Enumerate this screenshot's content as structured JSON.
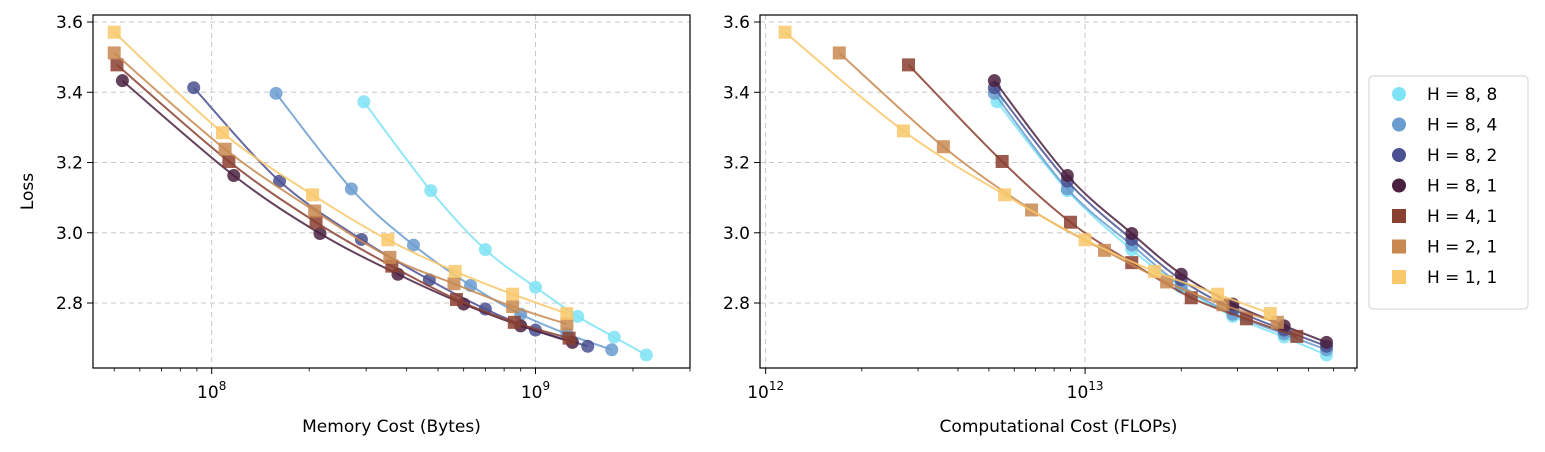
{
  "chart_data": [
    {
      "type": "scatter",
      "xscale": "log",
      "xlabel": "Memory Cost (Bytes)",
      "ylabel": "Loss",
      "xlim": [
        43000000,
        3000000000
      ],
      "ylim": [
        2.615,
        3.62
      ],
      "grid": true,
      "xticks": [
        {
          "value": 100000000,
          "base": "10",
          "exp": "8"
        },
        {
          "value": 1000000000,
          "base": "10",
          "exp": "9"
        }
      ],
      "yticks": [
        {
          "value": 2.8,
          "label": "2.8"
        },
        {
          "value": 3.0,
          "label": "3.0"
        },
        {
          "value": 3.2,
          "label": "3.2"
        },
        {
          "value": 3.4,
          "label": "3.4"
        },
        {
          "value": 3.6,
          "label": "3.6"
        }
      ],
      "series": [
        {
          "name": "H=8,8",
          "marker": "circle",
          "color": "#7ee3f5",
          "x": [
            295000000,
            475000000,
            700000000,
            1000000000,
            1350000000,
            1750000000,
            2200000000
          ],
          "y": [
            3.373,
            3.12,
            2.952,
            2.845,
            2.762,
            2.703,
            2.652
          ]
        },
        {
          "name": "H=8,4",
          "marker": "circle",
          "color": "#6a9ccf",
          "x": [
            158000000,
            270000000,
            420000000,
            630000000,
            900000000,
            1250000000,
            1720000000
          ],
          "y": [
            3.397,
            3.125,
            2.965,
            2.85,
            2.768,
            2.712,
            2.667
          ]
        },
        {
          "name": "H=8,2",
          "marker": "circle",
          "color": "#4a5090",
          "x": [
            88000000,
            162000000,
            290000000,
            470000000,
            700000000,
            1000000000,
            1450000000
          ],
          "y": [
            3.413,
            3.147,
            2.981,
            2.866,
            2.783,
            2.723,
            2.677
          ]
        },
        {
          "name": "H=8,1",
          "marker": "circle",
          "color": "#4a2040",
          "x": [
            53000000,
            117000000,
            216000000,
            376000000,
            600000000,
            900000000,
            1300000000
          ],
          "y": [
            3.433,
            3.163,
            2.998,
            2.882,
            2.797,
            2.735,
            2.688
          ]
        },
        {
          "name": "H=4,1",
          "marker": "square",
          "color": "#8a4030",
          "x": [
            51000000,
            113000000,
            210000000,
            360000000,
            570000000,
            860000000,
            1270000000
          ],
          "y": [
            3.478,
            3.203,
            3.03,
            2.905,
            2.81,
            2.745,
            2.7
          ]
        },
        {
          "name": "H=2,1",
          "marker": "square",
          "color": "#c88850",
          "x": [
            50000000,
            110000000,
            208000000,
            355000000,
            560000000,
            850000000,
            1250000000
          ],
          "y": [
            3.512,
            3.238,
            3.062,
            2.93,
            2.855,
            2.79,
            2.74
          ]
        },
        {
          "name": "H=1,1",
          "marker": "square",
          "color": "#f8c86a",
          "x": [
            50000000,
            108000000,
            205000000,
            350000000,
            565000000,
            850000000,
            1250000000
          ],
          "y": [
            3.571,
            3.285,
            3.108,
            2.98,
            2.89,
            2.825,
            2.77
          ]
        }
      ]
    },
    {
      "type": "scatter",
      "xscale": "log",
      "xlabel": "Computational Cost (FLOPs)",
      "ylabel": "",
      "xlim": [
        960000000000,
        71000000000000
      ],
      "ylim": [
        2.615,
        3.62
      ],
      "grid": true,
      "xticks": [
        {
          "value": 1000000000000,
          "base": "10",
          "exp": "12"
        },
        {
          "value": 10000000000000,
          "base": "10",
          "exp": "13"
        }
      ],
      "yticks": [
        {
          "value": 2.8,
          "label": "2.8"
        },
        {
          "value": 3.0,
          "label": "3.0"
        },
        {
          "value": 3.2,
          "label": "3.2"
        },
        {
          "value": 3.4,
          "label": "3.4"
        },
        {
          "value": 3.6,
          "label": "3.6"
        }
      ],
      "series": [
        {
          "name": "H=8,8",
          "marker": "circle",
          "color": "#7ee3f5",
          "x": [
            5300000000000,
            8800000000000,
            14000000000000,
            20000000000000,
            29000000000000,
            42000000000000,
            57000000000000
          ],
          "y": [
            3.373,
            3.12,
            2.952,
            2.845,
            2.762,
            2.703,
            2.652
          ]
        },
        {
          "name": "H=8,4",
          "marker": "circle",
          "color": "#6a9ccf",
          "x": [
            5200000000000,
            8800000000000,
            14000000000000,
            20000000000000,
            29000000000000,
            42000000000000,
            57000000000000
          ],
          "y": [
            3.397,
            3.125,
            2.965,
            2.85,
            2.768,
            2.712,
            2.667
          ]
        },
        {
          "name": "H=8,2",
          "marker": "circle",
          "color": "#4a5090",
          "x": [
            5200000000000,
            8800000000000,
            14000000000000,
            20000000000000,
            29000000000000,
            42000000000000,
            57000000000000
          ],
          "y": [
            3.413,
            3.147,
            2.981,
            2.866,
            2.783,
            2.723,
            2.677
          ]
        },
        {
          "name": "H=8,1",
          "marker": "circle",
          "color": "#4a2040",
          "x": [
            5200000000000,
            8800000000000,
            14000000000000,
            20000000000000,
            29000000000000,
            42000000000000,
            57000000000000
          ],
          "y": [
            3.433,
            3.163,
            2.998,
            2.882,
            2.797,
            2.735,
            2.688
          ]
        },
        {
          "name": "H=4,1",
          "marker": "square",
          "color": "#8a4030",
          "x": [
            2800000000000,
            5500000000000,
            9000000000000,
            14000000000000,
            21500000000000,
            32000000000000,
            46000000000000
          ],
          "y": [
            3.478,
            3.203,
            3.03,
            2.915,
            2.815,
            2.755,
            2.705
          ]
        },
        {
          "name": "H=2,1",
          "marker": "square",
          "color": "#c88850",
          "x": [
            1700000000000,
            3600000000000,
            6800000000000,
            11500000000000,
            18000000000000,
            27000000000000,
            40000000000000
          ],
          "y": [
            3.512,
            3.245,
            3.065,
            2.95,
            2.86,
            2.795,
            2.745
          ]
        },
        {
          "name": "H=1,1",
          "marker": "square",
          "color": "#f8c86a",
          "x": [
            1150000000000,
            2700000000000,
            5600000000000,
            10000000000000,
            16500000000000,
            26000000000000,
            38000000000000
          ],
          "y": [
            3.571,
            3.29,
            3.108,
            2.98,
            2.89,
            2.825,
            2.77
          ]
        }
      ]
    }
  ],
  "legend": {
    "placement": "right",
    "entries": [
      {
        "label": "H = 8, 8",
        "color": "#7ee3f5",
        "marker": "circle"
      },
      {
        "label": "H = 8, 4",
        "color": "#6a9ccf",
        "marker": "circle"
      },
      {
        "label": "H = 8, 2",
        "color": "#4a5090",
        "marker": "circle"
      },
      {
        "label": "H = 8, 1",
        "color": "#4a2040",
        "marker": "circle"
      },
      {
        "label": "H = 4, 1",
        "color": "#8a4030",
        "marker": "square"
      },
      {
        "label": "H = 2, 1",
        "color": "#c88850",
        "marker": "square"
      },
      {
        "label": "H = 1, 1",
        "color": "#f8c86a",
        "marker": "square"
      }
    ]
  }
}
